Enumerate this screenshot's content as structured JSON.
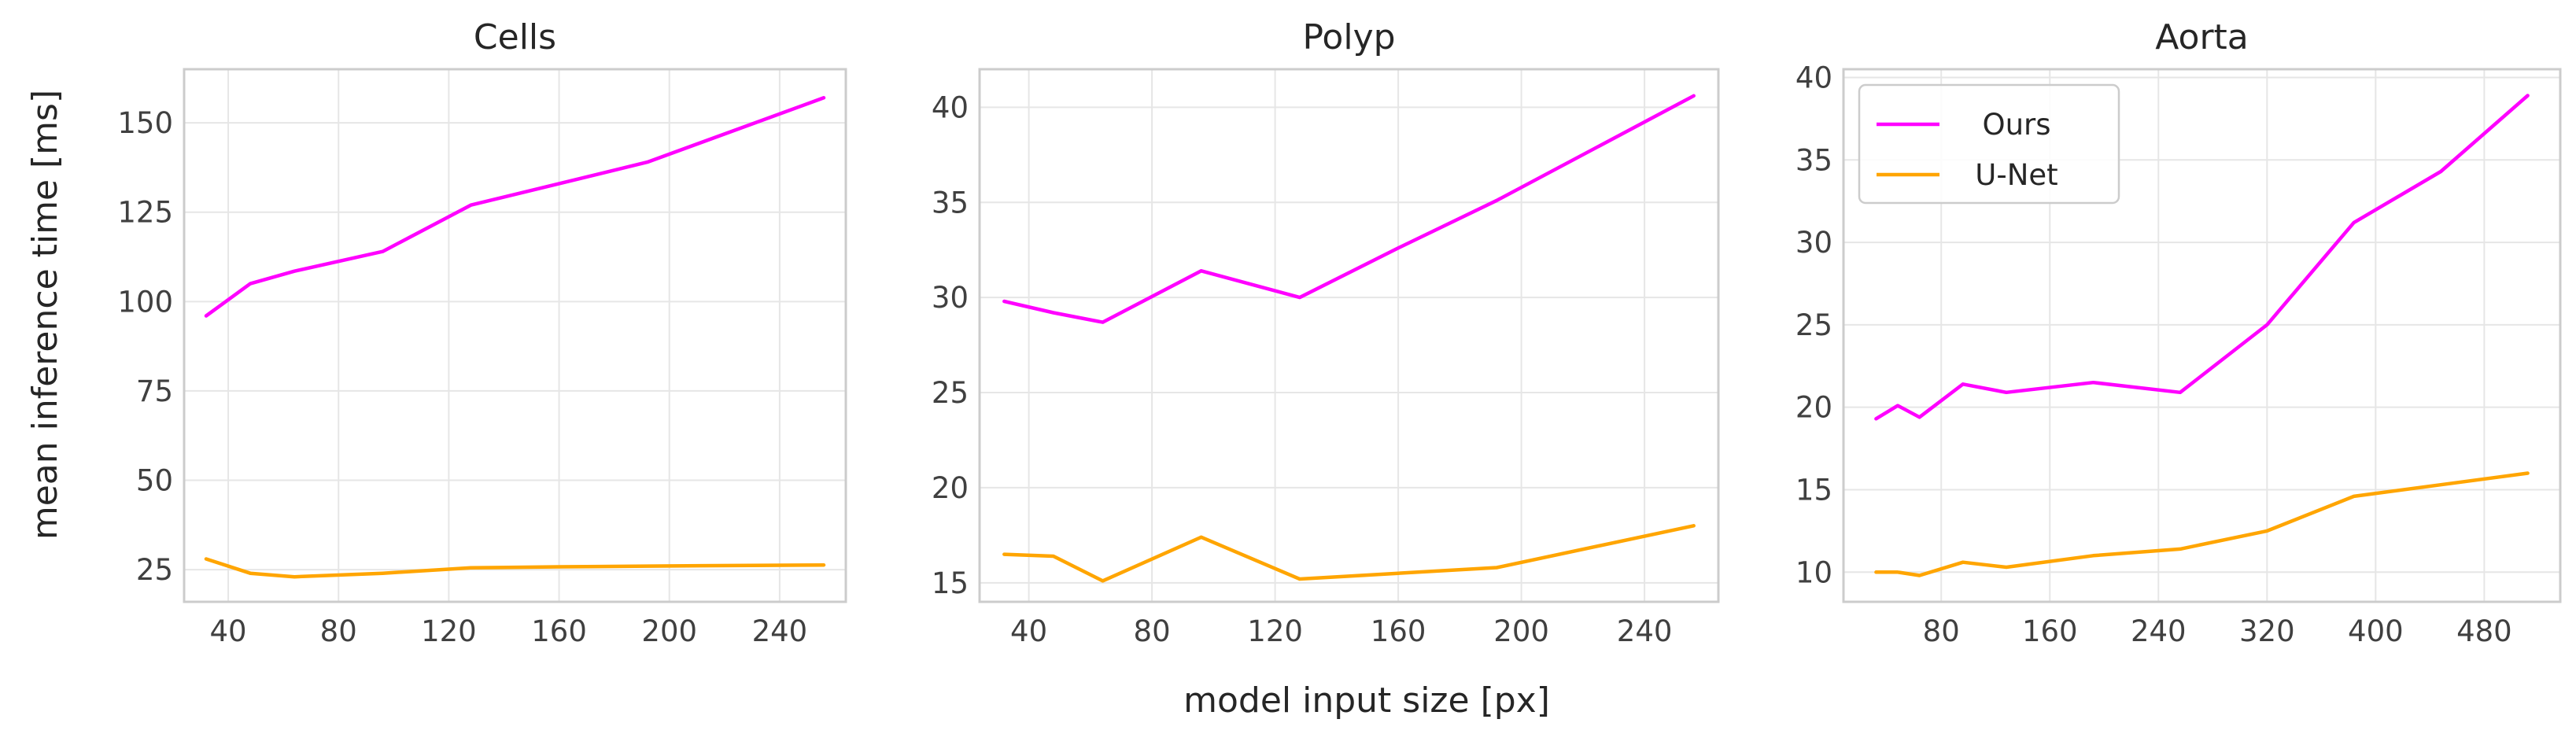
{
  "figure": {
    "shared_xlabel": "model input size [px]",
    "shared_ylabel": "mean inference time [ms]"
  },
  "colors": {
    "ours": "#ff00ff",
    "unet": "#ffa500"
  },
  "chart_data": [
    {
      "type": "line",
      "title": "Cells",
      "xlim": [
        24,
        264
      ],
      "ylim": [
        16,
        165
      ],
      "xticks": [
        40,
        80,
        120,
        160,
        200,
        240
      ],
      "yticks": [
        25,
        50,
        75,
        100,
        125,
        150
      ],
      "grid": true,
      "legend": null,
      "x": [
        32,
        48,
        64,
        96,
        128,
        160,
        192,
        256
      ],
      "series": [
        {
          "name": "Ours",
          "color": "#ff00ff",
          "values": [
            96,
            105,
            108.5,
            114,
            127,
            133,
            139,
            157
          ]
        },
        {
          "name": "U-Net",
          "color": "#ffa500",
          "values": [
            28,
            24,
            23,
            24,
            25.5,
            25.8,
            26,
            26.3
          ]
        }
      ]
    },
    {
      "type": "line",
      "title": "Polyp",
      "xlim": [
        24,
        264
      ],
      "ylim": [
        14,
        42
      ],
      "xticks": [
        40,
        80,
        120,
        160,
        200,
        240
      ],
      "yticks": [
        15,
        20,
        25,
        30,
        35,
        40
      ],
      "grid": true,
      "legend": null,
      "x": [
        32,
        48,
        64,
        96,
        128,
        160,
        192,
        256
      ],
      "series": [
        {
          "name": "Ours",
          "color": "#ff00ff",
          "values": [
            29.8,
            29.2,
            28.7,
            31.4,
            30,
            32.6,
            35.1,
            40.6
          ]
        },
        {
          "name": "U-Net",
          "color": "#ffa500",
          "values": [
            16.5,
            16.4,
            15.1,
            17.4,
            15.2,
            15.5,
            15.8,
            18.0
          ]
        }
      ]
    },
    {
      "type": "line",
      "title": "Aorta",
      "xlim": [
        8,
        536
      ],
      "ylim": [
        8.2,
        40.5
      ],
      "xticks": [
        80,
        160,
        240,
        320,
        400,
        480
      ],
      "yticks": [
        10,
        15,
        20,
        25,
        30,
        35,
        40
      ],
      "grid": true,
      "legend": "top-left",
      "x": [
        32,
        48,
        64,
        96,
        128,
        192,
        256,
        320,
        384,
        448,
        512
      ],
      "series": [
        {
          "name": "Ours",
          "color": "#ff00ff",
          "values": [
            19.3,
            20.1,
            19.4,
            21.4,
            20.9,
            21.5,
            20.9,
            25.0,
            31.2,
            34.3,
            38.9
          ]
        },
        {
          "name": "U-Net",
          "color": "#ffa500",
          "values": [
            10.0,
            10.0,
            9.8,
            10.6,
            10.3,
            11.0,
            11.4,
            12.5,
            14.6,
            15.3,
            16.0
          ]
        }
      ]
    }
  ]
}
